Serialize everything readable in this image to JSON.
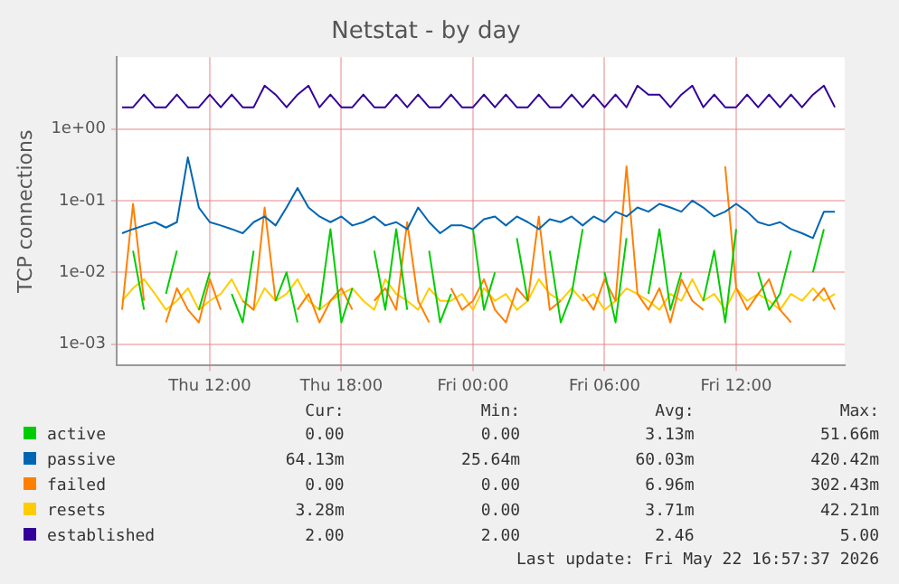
{
  "chart_data": {
    "type": "line",
    "title": "Netstat - by day",
    "ylabel": "TCP connections",
    "x": [
      "2026-05-21T08:00",
      "2026-05-21T08:30",
      "2026-05-21T09:00",
      "2026-05-21T09:30",
      "2026-05-21T10:00",
      "2026-05-21T10:30",
      "2026-05-21T11:00",
      "2026-05-21T11:30",
      "2026-05-21T12:00",
      "2026-05-21T12:30",
      "2026-05-21T13:00",
      "2026-05-21T13:30",
      "2026-05-21T14:00",
      "2026-05-21T14:30",
      "2026-05-21T15:00",
      "2026-05-21T15:30",
      "2026-05-21T16:00",
      "2026-05-21T16:30",
      "2026-05-21T17:00",
      "2026-05-21T17:30",
      "2026-05-21T18:00",
      "2026-05-21T18:30",
      "2026-05-21T19:00",
      "2026-05-21T19:30",
      "2026-05-21T20:00",
      "2026-05-21T20:30",
      "2026-05-21T21:00",
      "2026-05-21T21:30",
      "2026-05-21T22:00",
      "2026-05-21T22:30",
      "2026-05-21T23:00",
      "2026-05-21T23:30",
      "2026-05-22T00:00",
      "2026-05-22T00:30",
      "2026-05-22T01:00",
      "2026-05-22T01:30",
      "2026-05-22T02:00",
      "2026-05-22T02:30",
      "2026-05-22T03:00",
      "2026-05-22T03:30",
      "2026-05-22T04:00",
      "2026-05-22T04:30",
      "2026-05-22T05:00",
      "2026-05-22T05:30",
      "2026-05-22T06:00",
      "2026-05-22T06:30",
      "2026-05-22T07:00",
      "2026-05-22T07:30",
      "2026-05-22T08:00",
      "2026-05-22T08:30",
      "2026-05-22T09:00",
      "2026-05-22T09:30",
      "2026-05-22T10:00",
      "2026-05-22T10:30",
      "2026-05-22T11:00",
      "2026-05-22T11:30",
      "2026-05-22T12:00",
      "2026-05-22T12:30",
      "2026-05-22T13:00",
      "2026-05-22T13:30",
      "2026-05-22T14:00",
      "2026-05-22T14:30",
      "2026-05-22T15:00",
      "2026-05-22T15:30",
      "2026-05-22T16:00",
      "2026-05-22T16:30"
    ],
    "xlim": [
      "2026-05-21T07:45",
      "2026-05-22T16:57"
    ],
    "xticks": [
      {
        "value": "2026-05-21T12:00",
        "label": "Thu 12:00"
      },
      {
        "value": "2026-05-21T18:00",
        "label": "Thu 18:00"
      },
      {
        "value": "2026-05-22T00:00",
        "label": "Fri 00:00"
      },
      {
        "value": "2026-05-22T06:00",
        "label": "Fri 06:00"
      },
      {
        "value": "2026-05-22T12:00",
        "label": "Fri 12:00"
      }
    ],
    "ylim": [
      0.0005,
      10
    ],
    "yticks": [
      {
        "value": 0.001,
        "label": "1e-03"
      },
      {
        "value": 0.01,
        "label": "1e-02"
      },
      {
        "value": 0.1,
        "label": "1e-01"
      },
      {
        "value": 1,
        "label": "1e+00"
      }
    ],
    "log": "y",
    "grid": true,
    "legend": "bottom",
    "marker": "none",
    "line_style": "solid",
    "series": [
      {
        "name": "active",
        "color": "#00cc00",
        "values": [
          null,
          0.02,
          0.003,
          null,
          0.005,
          0.02,
          null,
          0.003,
          0.01,
          null,
          0.005,
          0.002,
          0.02,
          null,
          0.004,
          0.01,
          0.002,
          null,
          0.003,
          0.04,
          0.002,
          0.006,
          null,
          0.02,
          0.003,
          0.04,
          0.003,
          null,
          0.02,
          0.002,
          0.005,
          null,
          0.04,
          0.003,
          0.01,
          null,
          0.03,
          0.004,
          null,
          0.02,
          0.002,
          0.005,
          0.04,
          null,
          0.01,
          0.002,
          0.03,
          null,
          0.005,
          0.04,
          0.003,
          0.01,
          null,
          0.004,
          0.02,
          0.002,
          0.04,
          null,
          0.01,
          0.003,
          0.005,
          0.02,
          null,
          0.01,
          0.04,
          null
        ]
      },
      {
        "name": "passive",
        "color": "#0066b3",
        "values": [
          0.035,
          0.04,
          0.045,
          0.05,
          0.042,
          0.05,
          0.4,
          0.08,
          0.05,
          0.045,
          0.04,
          0.035,
          0.05,
          0.06,
          0.045,
          0.08,
          0.15,
          0.08,
          0.06,
          0.05,
          0.06,
          0.045,
          0.05,
          0.06,
          0.045,
          0.05,
          0.04,
          0.08,
          0.05,
          0.035,
          0.045,
          0.045,
          0.04,
          0.055,
          0.06,
          0.045,
          0.06,
          0.05,
          0.04,
          0.055,
          0.05,
          0.06,
          0.045,
          0.06,
          0.05,
          0.07,
          0.06,
          0.08,
          0.07,
          0.09,
          0.08,
          0.07,
          0.1,
          0.08,
          0.06,
          0.07,
          0.09,
          0.07,
          0.05,
          0.045,
          0.05,
          0.04,
          0.035,
          0.03,
          0.07,
          0.07
        ]
      },
      {
        "name": "failed",
        "color": "#ff8000",
        "values": [
          0.003,
          0.09,
          0.004,
          null,
          0.002,
          0.006,
          0.003,
          0.002,
          0.008,
          0.003,
          null,
          0.004,
          0.003,
          0.08,
          0.004,
          null,
          0.003,
          0.005,
          0.002,
          0.004,
          0.006,
          0.003,
          null,
          0.004,
          0.006,
          0.003,
          0.05,
          0.004,
          0.002,
          null,
          0.006,
          0.003,
          0.004,
          0.008,
          0.003,
          0.002,
          0.006,
          0.004,
          0.06,
          0.003,
          0.004,
          null,
          0.005,
          0.003,
          0.008,
          0.004,
          0.3,
          0.005,
          0.003,
          0.006,
          0.002,
          0.008,
          0.004,
          0.003,
          null,
          0.3,
          0.006,
          0.003,
          0.005,
          0.008,
          0.003,
          0.002,
          null,
          0.004,
          0.006,
          0.003
        ]
      },
      {
        "name": "resets",
        "color": "#ffcc00",
        "values": [
          0.004,
          0.006,
          0.008,
          0.005,
          0.003,
          0.004,
          0.006,
          0.003,
          0.004,
          0.005,
          0.008,
          0.004,
          0.003,
          0.006,
          0.004,
          0.005,
          0.008,
          0.004,
          0.003,
          0.004,
          0.005,
          0.006,
          0.004,
          0.003,
          0.008,
          0.005,
          0.004,
          0.003,
          0.006,
          0.004,
          0.004,
          0.005,
          0.003,
          0.006,
          0.004,
          0.005,
          0.003,
          0.004,
          0.008,
          0.005,
          0.004,
          0.006,
          0.004,
          0.005,
          0.003,
          0.004,
          0.006,
          0.005,
          0.004,
          0.003,
          0.005,
          0.004,
          0.008,
          0.004,
          0.005,
          0.003,
          0.006,
          0.004,
          0.005,
          0.004,
          0.003,
          0.005,
          0.004,
          0.006,
          0.004,
          0.005
        ]
      },
      {
        "name": "established",
        "color": "#330099",
        "values": [
          2,
          2,
          3,
          2,
          2,
          3,
          2,
          2,
          3,
          2,
          3,
          2,
          2,
          4,
          3,
          2,
          3,
          4,
          2,
          3,
          2,
          2,
          3,
          2,
          2,
          3,
          2,
          3,
          2,
          2,
          3,
          2,
          2,
          3,
          2,
          3,
          2,
          2,
          3,
          2,
          2,
          3,
          2,
          3,
          2,
          3,
          2,
          4,
          3,
          3,
          2,
          3,
          4,
          2,
          3,
          2,
          2,
          3,
          2,
          3,
          2,
          3,
          2,
          3,
          4,
          2
        ]
      }
    ],
    "annotations": [
      "Cur:",
      "Min:",
      "Avg:",
      "Max:",
      "0.00",
      "0.00",
      "3.13m",
      "51.66m",
      "64.13m",
      "25.64m",
      "60.03m",
      "420.42m",
      "0.00",
      "0.00",
      "6.96m",
      "302.43m",
      "3.28m",
      "0.00",
      "3.71m",
      "42.21m",
      "2.00",
      "2.00",
      "2.46",
      "5.00",
      "Last update: Fri May 22 16:57:37 2026"
    ]
  }
}
